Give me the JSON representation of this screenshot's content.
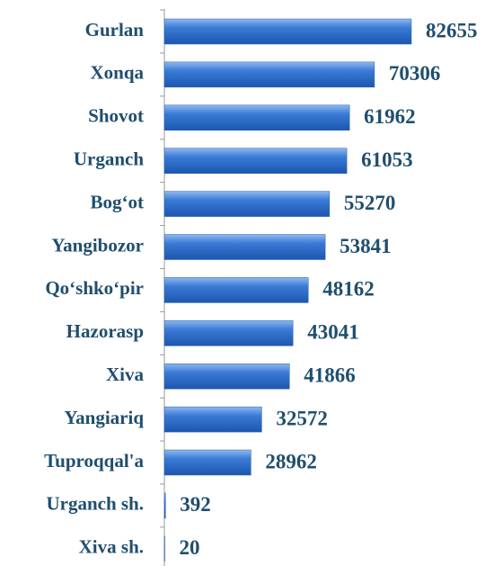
{
  "chart_data": {
    "type": "bar",
    "orientation": "horizontal",
    "categories": [
      "Gurlan",
      "Xonqa",
      "Shovot",
      "Urganch",
      "Bog‘ot",
      "Yangibozor",
      "Qo‘shko‘pir",
      "Hazorasp",
      "Xiva",
      "Yangiariq",
      "Tuproqqal'a",
      "Urganch sh.",
      "Xiva sh."
    ],
    "values": [
      82655,
      70306,
      61962,
      61053,
      55270,
      53841,
      48162,
      43041,
      41866,
      32572,
      28962,
      392,
      20
    ],
    "color": "#3a7bd5"
  }
}
